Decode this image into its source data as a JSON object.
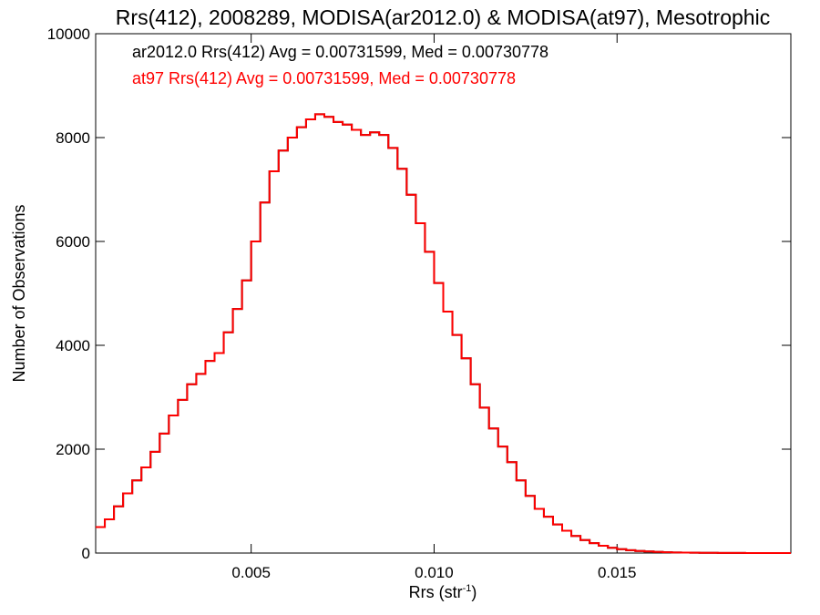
{
  "chart_data": {
    "type": "line",
    "title": "Rrs(412), 2008289, MODISA(ar2012.0) & MODISA(at97), Mesotrophic",
    "xlabel_main": "Rrs (str",
    "xlabel_sup": "-1",
    "xlabel_tail": ")",
    "ylabel": "Number of Observations",
    "xlim": [
      0.00075,
      0.01975
    ],
    "ylim": [
      0,
      10000
    ],
    "x_ticks": [
      0.005,
      0.01,
      0.015
    ],
    "x_tick_labels": [
      "0.005",
      "0.010",
      "0.015"
    ],
    "y_ticks": [
      0,
      2000,
      4000,
      6000,
      8000,
      10000
    ],
    "y_tick_labels": [
      "0",
      "2000",
      "4000",
      "6000",
      "8000",
      "10000"
    ],
    "grid": false,
    "annotations": [
      {
        "text": "ar2012.0 Rrs(412) Avg = 0.00731599, Med = 0.00730778",
        "color": "#000000"
      },
      {
        "text": "at97 Rrs(412) Avg = 0.00731599, Med = 0.00730778",
        "color": "#ff0000"
      }
    ],
    "series": [
      {
        "name": "ar2012.0",
        "color": "#000000",
        "x": [
          0.00075,
          0.001,
          0.00125,
          0.0015,
          0.00175,
          0.002,
          0.00225,
          0.0025,
          0.00275,
          0.003,
          0.00325,
          0.0035,
          0.00375,
          0.004,
          0.00425,
          0.0045,
          0.00475,
          0.005,
          0.00525,
          0.0055,
          0.00575,
          0.006,
          0.00625,
          0.0065,
          0.00675,
          0.007,
          0.00725,
          0.0075,
          0.00775,
          0.008,
          0.00825,
          0.0085,
          0.00875,
          0.009,
          0.00925,
          0.0095,
          0.00975,
          0.01,
          0.01025,
          0.0105,
          0.01075,
          0.011,
          0.01125,
          0.0115,
          0.01175,
          0.012,
          0.01225,
          0.0125,
          0.01275,
          0.013,
          0.01325,
          0.0135,
          0.01375,
          0.014,
          0.01425,
          0.0145,
          0.01475,
          0.015,
          0.01525,
          0.0155,
          0.01575,
          0.016,
          0.01625,
          0.0165,
          0.01675,
          0.017,
          0.01725,
          0.0175,
          0.01775,
          0.018,
          0.01825,
          0.0185,
          0.01875,
          0.019,
          0.01925,
          0.0195,
          0.01975
        ],
        "y": [
          500,
          650,
          900,
          1150,
          1400,
          1650,
          1950,
          2300,
          2650,
          2950,
          3250,
          3450,
          3700,
          3850,
          4250,
          4700,
          5250,
          6000,
          6750,
          7350,
          7750,
          8000,
          8200,
          8350,
          8450,
          8400,
          8300,
          8250,
          8150,
          8050,
          8100,
          8050,
          7800,
          7400,
          6900,
          6350,
          5800,
          5200,
          4650,
          4200,
          3750,
          3250,
          2800,
          2400,
          2050,
          1750,
          1400,
          1100,
          850,
          700,
          550,
          430,
          330,
          250,
          190,
          140,
          100,
          75,
          55,
          40,
          30,
          22,
          16,
          12,
          9,
          7,
          5,
          4,
          3,
          2,
          2,
          1,
          1,
          1,
          0,
          0,
          0
        ]
      },
      {
        "name": "at97",
        "color": "#ff0000",
        "x": [
          0.00075,
          0.001,
          0.00125,
          0.0015,
          0.00175,
          0.002,
          0.00225,
          0.0025,
          0.00275,
          0.003,
          0.00325,
          0.0035,
          0.00375,
          0.004,
          0.00425,
          0.0045,
          0.00475,
          0.005,
          0.00525,
          0.0055,
          0.00575,
          0.006,
          0.00625,
          0.0065,
          0.00675,
          0.007,
          0.00725,
          0.0075,
          0.00775,
          0.008,
          0.00825,
          0.0085,
          0.00875,
          0.009,
          0.00925,
          0.0095,
          0.00975,
          0.01,
          0.01025,
          0.0105,
          0.01075,
          0.011,
          0.01125,
          0.0115,
          0.01175,
          0.012,
          0.01225,
          0.0125,
          0.01275,
          0.013,
          0.01325,
          0.0135,
          0.01375,
          0.014,
          0.01425,
          0.0145,
          0.01475,
          0.015,
          0.01525,
          0.0155,
          0.01575,
          0.016,
          0.01625,
          0.0165,
          0.01675,
          0.017,
          0.01725,
          0.0175,
          0.01775,
          0.018,
          0.01825,
          0.0185,
          0.01875,
          0.019,
          0.01925,
          0.0195,
          0.01975
        ],
        "y": [
          500,
          650,
          900,
          1150,
          1400,
          1650,
          1950,
          2300,
          2650,
          2950,
          3250,
          3450,
          3700,
          3850,
          4250,
          4700,
          5250,
          6000,
          6750,
          7350,
          7750,
          8000,
          8200,
          8350,
          8450,
          8400,
          8300,
          8250,
          8150,
          8050,
          8100,
          8050,
          7800,
          7400,
          6900,
          6350,
          5800,
          5200,
          4650,
          4200,
          3750,
          3250,
          2800,
          2400,
          2050,
          1750,
          1400,
          1100,
          850,
          700,
          550,
          430,
          330,
          250,
          190,
          140,
          100,
          75,
          55,
          40,
          30,
          22,
          16,
          12,
          9,
          7,
          5,
          4,
          3,
          2,
          2,
          1,
          1,
          1,
          0,
          0,
          0
        ]
      }
    ]
  }
}
